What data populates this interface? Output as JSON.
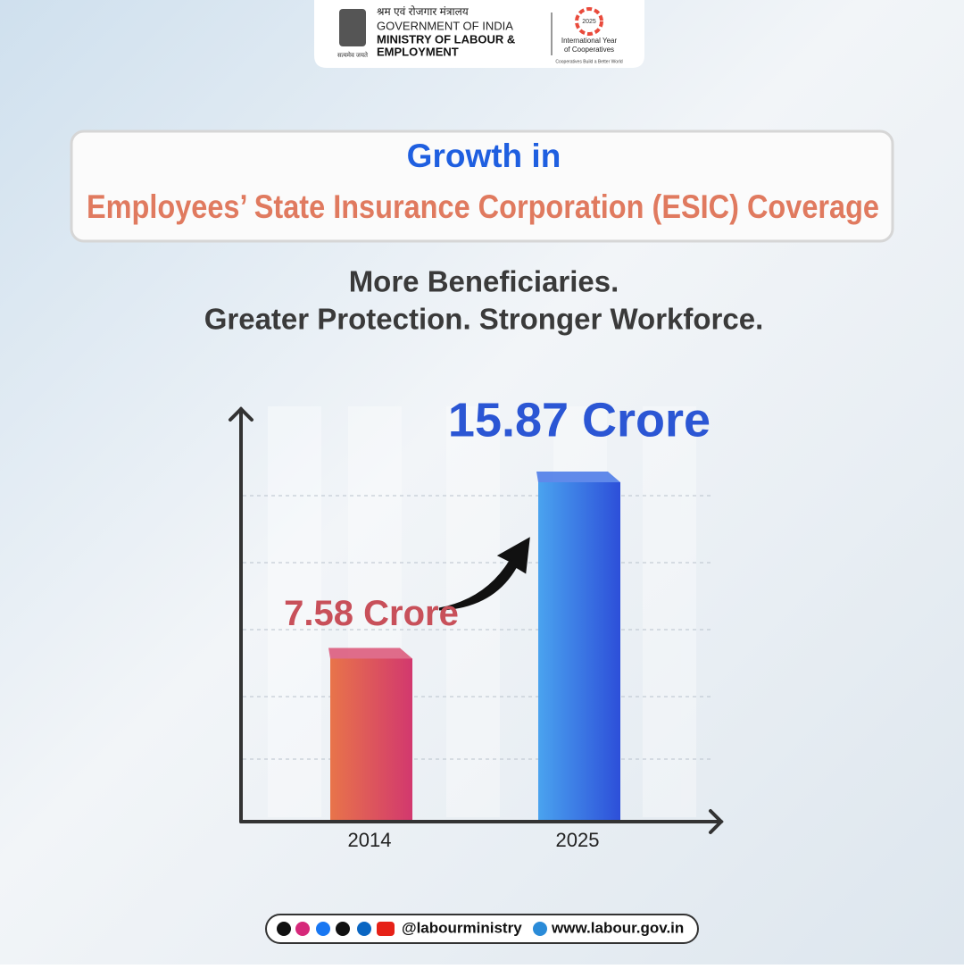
{
  "header": {
    "hindi": "श्रम एवं रोजगार मंत्रालय",
    "government": "GOVERNMENT OF INDIA",
    "ministry": [
      "MINISTRY OF LABOUR &",
      "EMPLOYMENT"
    ],
    "motto": "सत्यमेव जयते",
    "iyc_year": "2025",
    "iyc": [
      "International Year",
      "of Cooperatives"
    ],
    "iyc_tagline": "Cooperatives Build a Better World"
  },
  "title": [
    "Growth in",
    "Employees’ State Insurance Corporation (ESIC) Coverage"
  ],
  "subtitle": [
    "More Beneficiaries.",
    "Greater Protection. Stronger Workforce."
  ],
  "chart_data": {
    "type": "bar",
    "categories": [
      "2014",
      "2025"
    ],
    "values": [
      7.58,
      15.87
    ],
    "value_labels": [
      "7.58 Crore",
      "15.87 Crore"
    ],
    "colors": [
      "#d9486e",
      "#3b6ee6"
    ]
  },
  "footer": {
    "handle": "@labourministry",
    "website": "www.labour.gov.in"
  }
}
